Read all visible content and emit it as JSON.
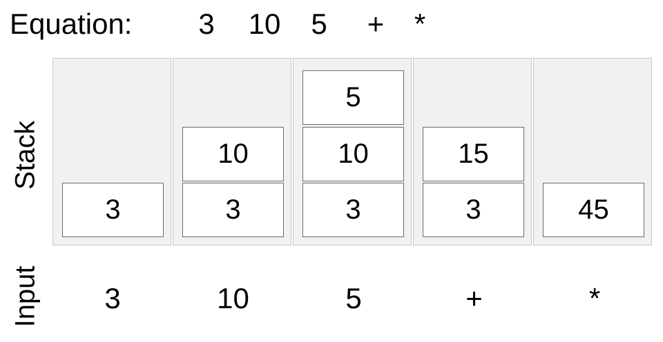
{
  "equation_label": "Equation:",
  "equation_tokens": [
    "3",
    "10",
    "5",
    "+",
    "*"
  ],
  "stack_label": "Stack",
  "input_label": "Input",
  "stacks": [
    [
      "3"
    ],
    [
      "3",
      "10"
    ],
    [
      "3",
      "10",
      "5"
    ],
    [
      "3",
      "15"
    ],
    [
      "45"
    ]
  ],
  "inputs": [
    "3",
    "10",
    "5",
    "+",
    "*"
  ]
}
